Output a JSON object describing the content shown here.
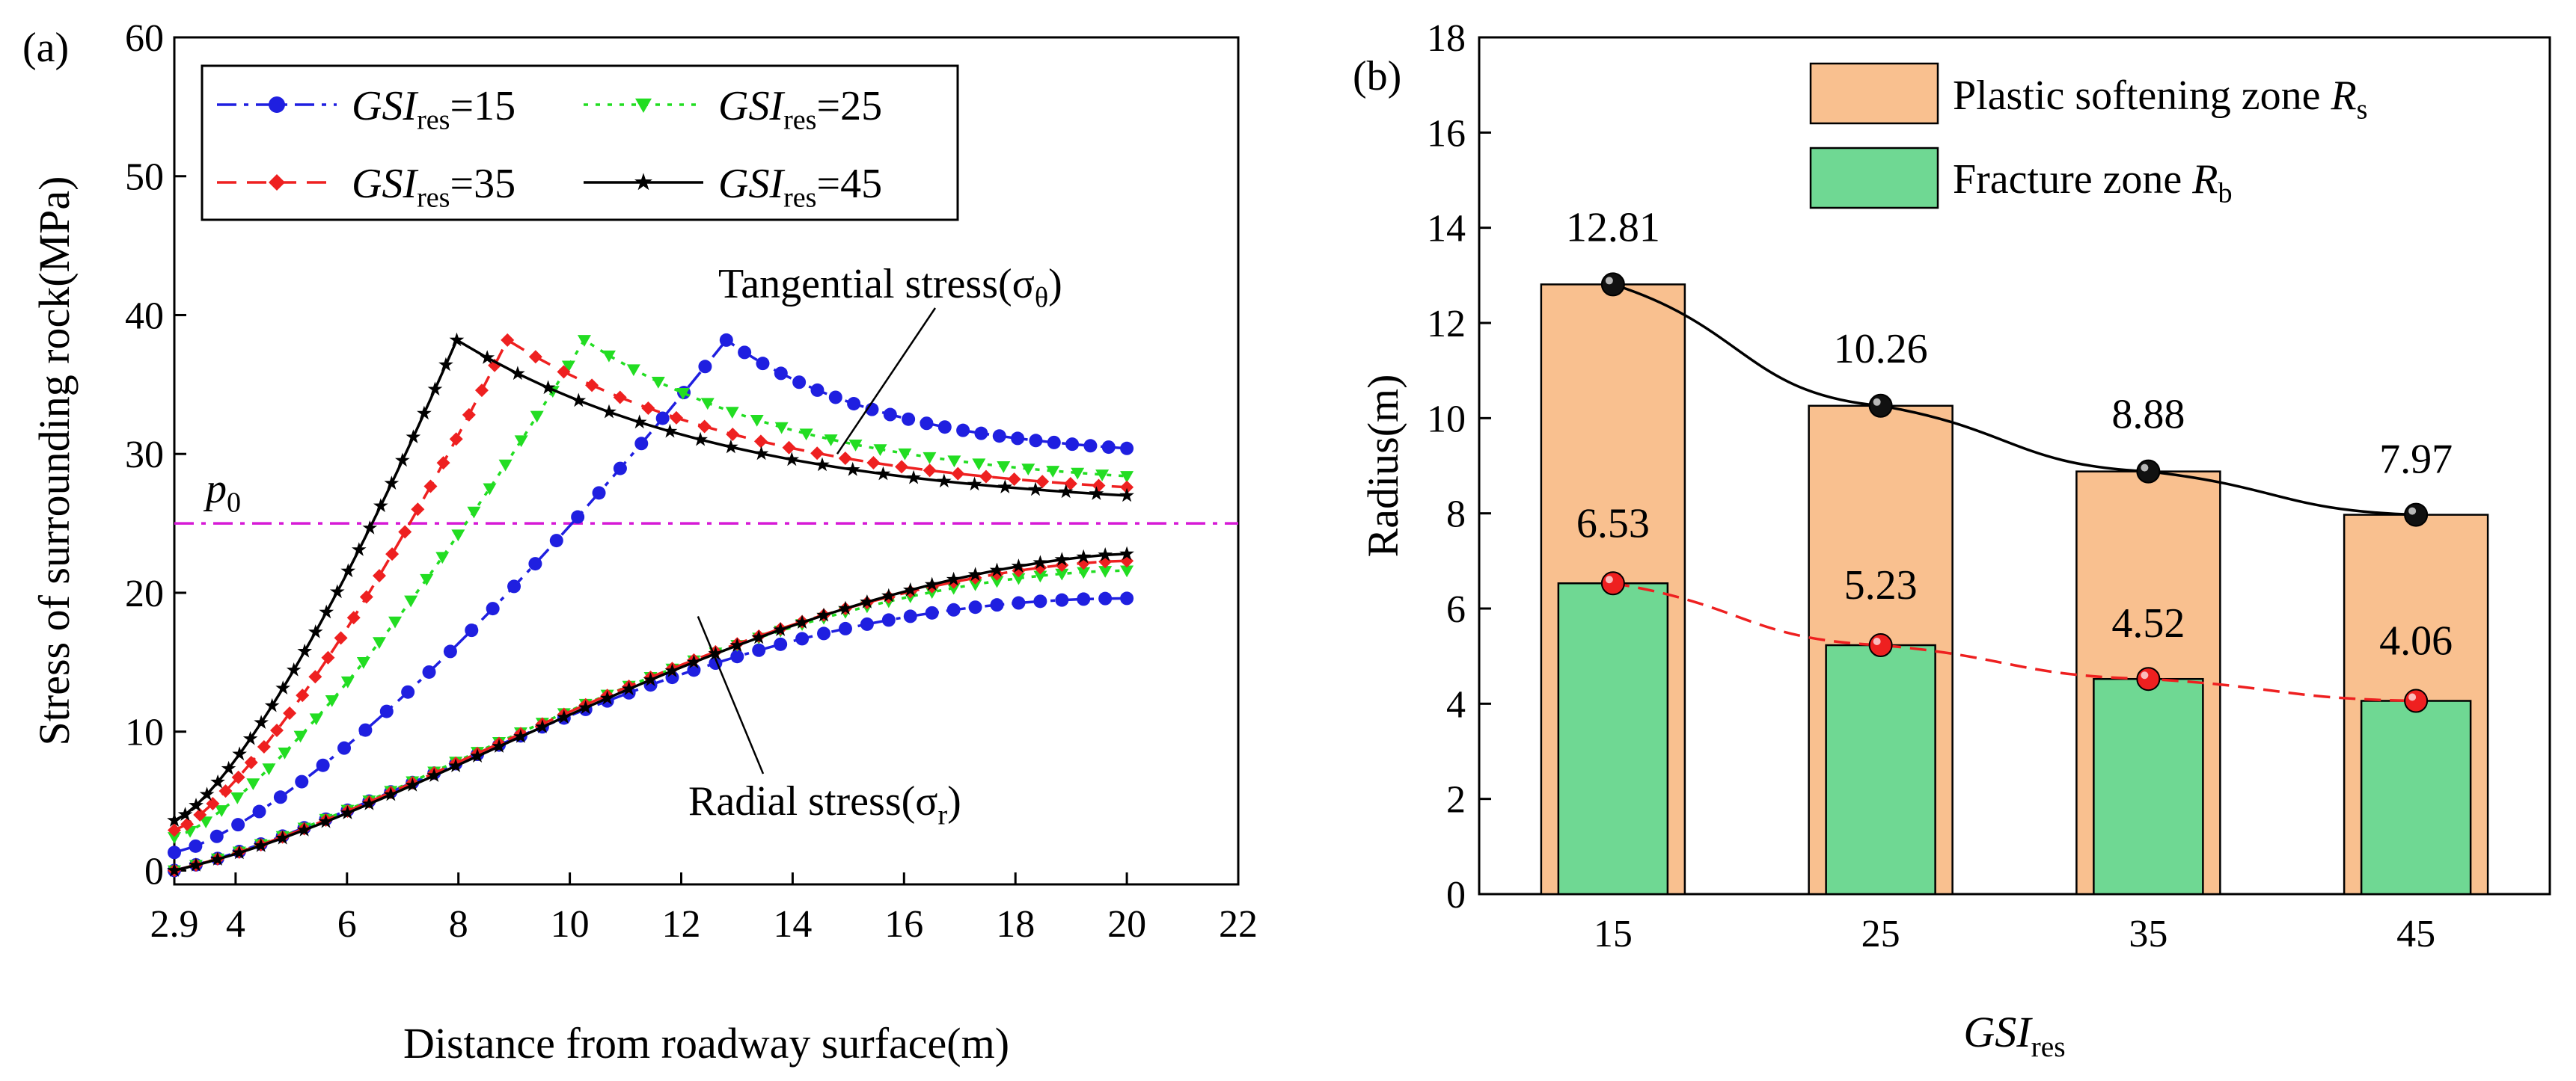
{
  "chart_data": [
    {
      "type": "line",
      "panel_label": "(a)",
      "xlabel": "Distance from roadway surface(m)",
      "ylabel": "Stress of surrounding rock(MPa)",
      "xlim": [
        2.9,
        22
      ],
      "ylim": [
        -1,
        60
      ],
      "xticks": [
        2.9,
        4,
        6,
        8,
        10,
        12,
        14,
        16,
        18,
        20,
        22
      ],
      "xtick_labels": [
        "2.9",
        "4",
        "6",
        "8",
        "10",
        "12",
        "14",
        "16",
        "18",
        "20",
        "22"
      ],
      "yticks": [
        0,
        10,
        20,
        30,
        40,
        50,
        60
      ],
      "ytick_labels": [
        "0",
        "10",
        "20",
        "30",
        "40",
        "50",
        "60"
      ],
      "reference_line": {
        "label": "p",
        "sub": "0",
        "value": 25,
        "color": "#d61ad6"
      },
      "annotations": [
        {
          "label": "Tangential stress(σ",
          "sub": "θ",
          "close": ")",
          "x": 14.8,
          "y": 30.0
        },
        {
          "label": "Radial stress(σ",
          "sub": "r",
          "close": ")",
          "x": 12.3,
          "y": 18.3
        }
      ],
      "legend": {
        "position": "top-left",
        "prefix": "GSI",
        "sub": "res"
      },
      "series": [
        {
          "name": "GSIres=15",
          "value_label": "=15",
          "color": "#1f1fe0",
          "dash": "dashdot",
          "marker": "circle",
          "peak_x": 12.81,
          "peak_y": 38.2,
          "tangential_end": 30.4,
          "radial_end": 19.6,
          "radial_shape": 1.9
        },
        {
          "name": "GSIres=25",
          "value_label": "=25",
          "color": "#22dd22",
          "dash": "dotted",
          "marker": "triangle-down",
          "peak_x": 10.26,
          "peak_y": 38.2,
          "tangential_end": 28.4,
          "radial_end": 21.6,
          "radial_shape": 1.7
        },
        {
          "name": "GSIres=35",
          "value_label": "=35",
          "color": "#ee2020",
          "dash": "dashed",
          "marker": "diamond",
          "peak_x": 8.88,
          "peak_y": 38.2,
          "tangential_end": 27.6,
          "radial_end": 22.3,
          "radial_shape": 1.6
        },
        {
          "name": "GSIres=45",
          "value_label": "=45",
          "color": "#000000",
          "dash": "solid",
          "marker": "star",
          "peak_x": 7.97,
          "peak_y": 38.2,
          "tangential_end": 27.0,
          "radial_end": 22.8,
          "radial_shape": 1.5
        }
      ],
      "x_start": 2.9,
      "x_end": 20,
      "tangential_start": [
        1.3,
        2.4,
        2.9,
        3.6
      ],
      "radial_start": 0
    },
    {
      "type": "bar",
      "panel_label": "(b)",
      "xlabel": "GSI",
      "xlabel_sub": "res",
      "ylabel": "Radius(m)",
      "categories": [
        "15",
        "25",
        "35",
        "45"
      ],
      "ylim": [
        0,
        18
      ],
      "yticks": [
        0,
        2,
        4,
        6,
        8,
        10,
        12,
        14,
        16,
        18
      ],
      "ytick_labels": [
        "0",
        "2",
        "4",
        "6",
        "8",
        "10",
        "12",
        "14",
        "16",
        "18"
      ],
      "series": [
        {
          "name": "Plastic softening zone R",
          "sub": "s",
          "values": [
            12.81,
            10.26,
            8.88,
            7.97
          ],
          "labels": [
            "12.81",
            "10.26",
            "8.88",
            "7.97"
          ],
          "color": "#f9c08f",
          "line_color": "#000000"
        },
        {
          "name": "Fracture zone R",
          "sub": "b",
          "values": [
            6.53,
            5.23,
            4.52,
            4.06
          ],
          "labels": [
            "6.53",
            "5.23",
            "4.52",
            "4.06"
          ],
          "color": "#6fd893",
          "line_color": "#ee2020"
        }
      ],
      "legend": {
        "position": "top-right"
      }
    }
  ]
}
